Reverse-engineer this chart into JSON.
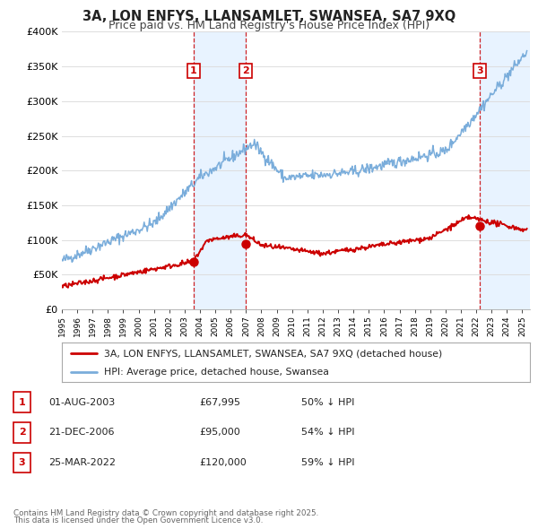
{
  "title": "3A, LON ENFYS, LLANSAMLET, SWANSEA, SA7 9XQ",
  "subtitle": "Price paid vs. HM Land Registry's House Price Index (HPI)",
  "title_fontsize": 10.5,
  "subtitle_fontsize": 9,
  "background_color": "#ffffff",
  "plot_bg_color": "#ffffff",
  "grid_color": "#dddddd",
  "xmin": 1995.0,
  "xmax": 2025.5,
  "ymin": 0,
  "ymax": 400000,
  "yticks": [
    0,
    50000,
    100000,
    150000,
    200000,
    250000,
    300000,
    350000,
    400000
  ],
  "ytick_labels": [
    "£0",
    "£50K",
    "£100K",
    "£150K",
    "£200K",
    "£250K",
    "£300K",
    "£350K",
    "£400K"
  ],
  "legend_line1": "3A, LON ENFYS, LLANSAMLET, SWANSEA, SA7 9XQ (detached house)",
  "legend_line2": "HPI: Average price, detached house, Swansea",
  "legend_color1": "#cc0000",
  "legend_color2": "#7aaddb",
  "sales": [
    {
      "num": 1,
      "date_year": 2003.583,
      "price": 67995,
      "label": "1",
      "date_str": "01-AUG-2003",
      "price_str": "£67,995",
      "pct_str": "50% ↓ HPI"
    },
    {
      "num": 2,
      "date_year": 2006.97,
      "price": 95000,
      "label": "2",
      "date_str": "21-DEC-2006",
      "price_str": "£95,000",
      "pct_str": "54% ↓ HPI"
    },
    {
      "num": 3,
      "date_year": 2022.23,
      "price": 120000,
      "label": "3",
      "date_str": "25-MAR-2022",
      "price_str": "£120,000",
      "pct_str": "59% ↓ HPI"
    }
  ],
  "footer1": "Contains HM Land Registry data © Crown copyright and database right 2025.",
  "footer2": "This data is licensed under the Open Government Licence v3.0.",
  "hpi_color": "#7aaddb",
  "price_color": "#cc0000",
  "sale_marker_color": "#cc0000",
  "vline_color": "#cc0000",
  "shade_color": "#ddeeff"
}
